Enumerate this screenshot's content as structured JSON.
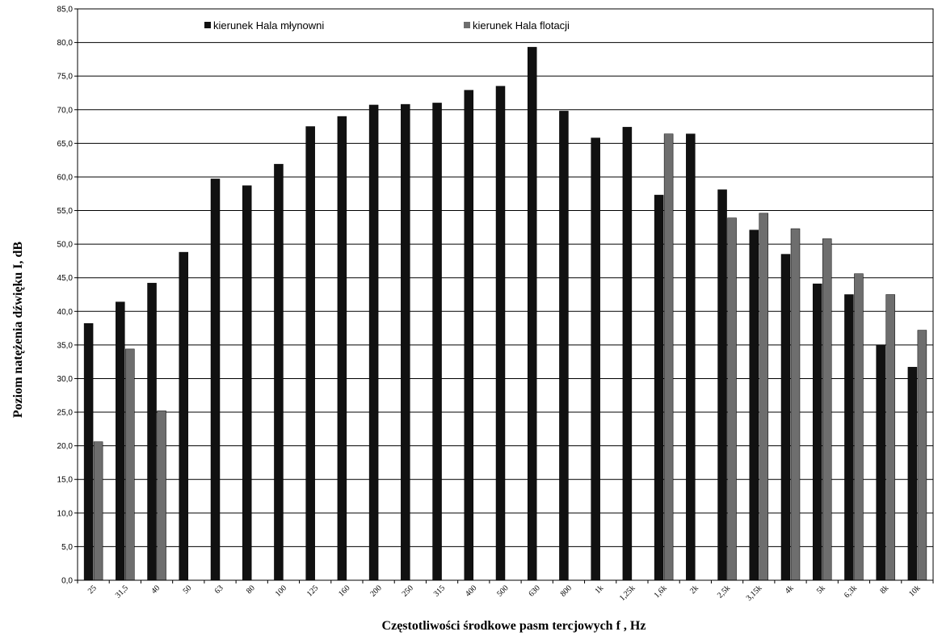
{
  "chart_data": {
    "type": "bar",
    "xlabel": "Częstotliwości środkowe pasm  tercjowych f , Hz",
    "ylabel": "Poziom natężenia dźwięku I, dB",
    "ylim": [
      0,
      85
    ],
    "yticks": [
      "0,0",
      "5,0",
      "10,0",
      "15,0",
      "20,0",
      "25,0",
      "30,0",
      "35,0",
      "40,0",
      "45,0",
      "50,0",
      "55,0",
      "60,0",
      "65,0",
      "70,0",
      "75,0",
      "80,0",
      "85,0"
    ],
    "grid": true,
    "legend_position": "top",
    "categories": [
      "25",
      "31,5",
      "40",
      "50",
      "63",
      "80",
      "100",
      "125",
      "160",
      "200",
      "250",
      "315",
      "400",
      "500",
      "630",
      "800",
      "1k",
      "1,25k",
      "1,6k",
      "2k",
      "2,5k",
      "3,15k",
      "4k",
      "5k",
      "6,3k",
      "8k",
      "10k"
    ],
    "series": [
      {
        "name": "kierunek Hala młynowni",
        "color": "#111111",
        "values": [
          38.2,
          41.4,
          44.2,
          48.8,
          59.7,
          58.7,
          61.9,
          67.5,
          69.0,
          70.7,
          70.8,
          71.0,
          72.9,
          73.5,
          79.3,
          69.8,
          65.8,
          67.4,
          57.3,
          66.4,
          58.1,
          52.1,
          48.5,
          44.1,
          42.5,
          35.0,
          31.7
        ]
      },
      {
        "name": "kierunek Hala flotacji",
        "color": "#6e6e6e",
        "values": [
          20.6,
          34.4,
          25.2,
          null,
          null,
          null,
          null,
          null,
          null,
          null,
          null,
          null,
          null,
          null,
          null,
          null,
          null,
          null,
          66.4,
          null,
          53.9,
          54.6,
          52.3,
          50.8,
          45.6,
          42.5,
          37.2
        ]
      }
    ]
  }
}
